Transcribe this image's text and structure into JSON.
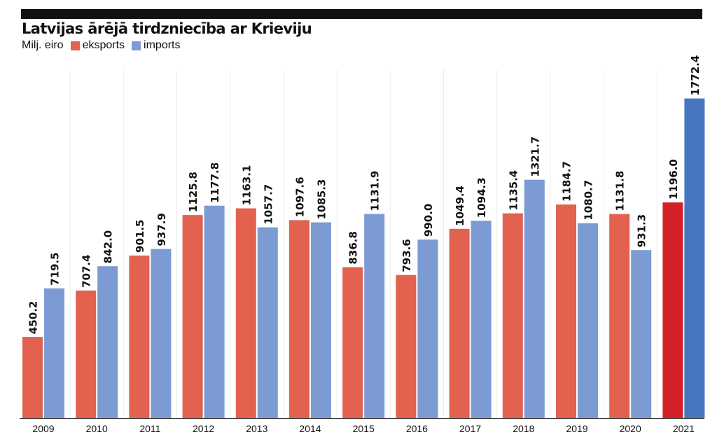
{
  "title": "Latvijas ārējā tirdzniecība ar Krieviju",
  "unit_label": "Milj. eiro",
  "colors": {
    "eksports": "#e2614f",
    "imports": "#7b9bd2",
    "eksports_highlight": "#d22026",
    "imports_highlight": "#4676c0"
  },
  "chart_data": {
    "type": "bar",
    "title": "Latvijas ārējā tirdzniecība ar Krieviju",
    "ylabel": "Milj. eiro",
    "categories": [
      "2009",
      "2010",
      "2011",
      "2012",
      "2013",
      "2014",
      "2015",
      "2016",
      "2017",
      "2018",
      "2019",
      "2020",
      "2021"
    ],
    "series": [
      {
        "name": "eksports",
        "values": [
          450.2,
          707.4,
          901.5,
          1125.8,
          1163.1,
          1097.6,
          836.8,
          793.6,
          1049.4,
          1135.4,
          1184.7,
          1131.8,
          1196.0
        ]
      },
      {
        "name": "imports",
        "values": [
          719.5,
          842.0,
          937.9,
          1177.8,
          1057.7,
          1085.3,
          1131.9,
          990.0,
          1094.3,
          1321.7,
          1080.7,
          931.3,
          1772.4
        ]
      }
    ],
    "value_labels": [
      [
        "450.2",
        "707.4",
        "901.5",
        "1125.8",
        "1163.1",
        "1097.6",
        "836.8",
        "793.6",
        "1049.4",
        "1135.4",
        "1184.7",
        "1131.8",
        "1196.0"
      ],
      [
        "719.5",
        "842.0",
        "937.9",
        "1177.8",
        "1057.7",
        "1085.3",
        "1131.9",
        "990.0",
        "1094.3",
        "1321.7",
        "1080.7",
        "931.3",
        "1772.4"
      ]
    ],
    "highlight_category": "2021",
    "ylim": [
      0,
      2000
    ],
    "grid": false,
    "legend_position": "top-left"
  }
}
